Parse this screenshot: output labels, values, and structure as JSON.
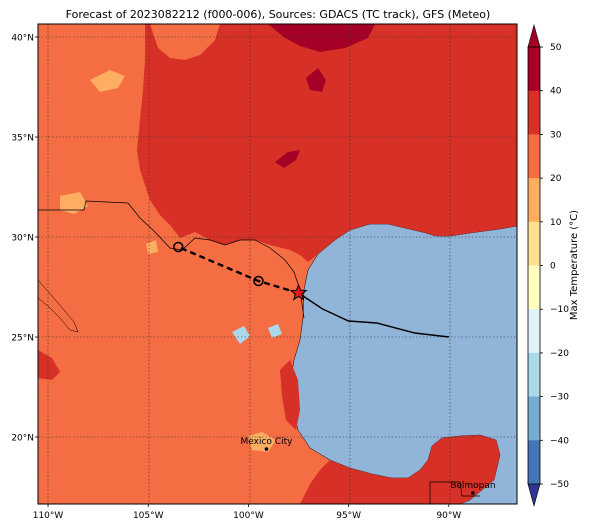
{
  "title": "Forecast of 2023082212 (f000-006), Sources: GDACS (TC track), GFS (Meteo)",
  "lat_ticks": [
    {
      "value": 40,
      "label": "40°N"
    },
    {
      "value": 35,
      "label": "35°N"
    },
    {
      "value": 30,
      "label": "30°N"
    },
    {
      "value": 25,
      "label": "25°N"
    },
    {
      "value": 20,
      "label": "20°N"
    }
  ],
  "lon_ticks": [
    {
      "value": -110,
      "label": "110°W"
    },
    {
      "value": -105,
      "label": "105°W"
    },
    {
      "value": -100,
      "label": "100°W"
    },
    {
      "value": -95,
      "label": "95°W"
    },
    {
      "value": -90,
      "label": "90°W"
    }
  ],
  "colorbar": {
    "label": "Max Temperature (°C)",
    "ticks": [
      50,
      40,
      30,
      20,
      10,
      0,
      -10,
      -20,
      -30,
      -40,
      -50
    ],
    "colors": [
      "#a50026",
      "#d73027",
      "#f46d43",
      "#fdae61",
      "#fee090",
      "#ffffbf",
      "#e0f3f8",
      "#abd9e9",
      "#74add1",
      "#4575b4",
      "#313695"
    ]
  },
  "cities": [
    {
      "name": "Mexico City",
      "lon": -99.1,
      "lat": 19.4
    },
    {
      "name": "Belmopan",
      "lon": -88.8,
      "lat": 17.2
    }
  ],
  "track": {
    "forecast_points": [
      {
        "lon": -97.5,
        "lat": 27.2
      },
      {
        "lon": -99.5,
        "lat": 27.8
      },
      {
        "lon": -103.5,
        "lat": 29.5
      }
    ],
    "past_track": [
      {
        "lon": -90.0,
        "lat": 25.0
      },
      {
        "lon": -91.7,
        "lat": 25.2
      },
      {
        "lon": -93.6,
        "lat": 25.7
      },
      {
        "lon": -95.0,
        "lat": 25.8
      },
      {
        "lon": -96.3,
        "lat": 26.4
      },
      {
        "lon": -97.5,
        "lat": 27.2
      }
    ]
  }
}
